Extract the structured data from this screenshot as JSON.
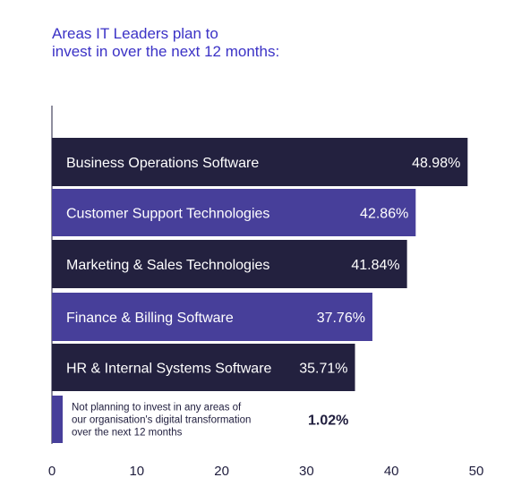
{
  "title": {
    "line1": "Areas IT Leaders plan to",
    "line2": "invest in over the next 12 months:"
  },
  "chart_data": {
    "type": "bar",
    "orientation": "horizontal",
    "categories": [
      "Business Operations Software",
      "Customer Support Technologies",
      "Marketing & Sales Technologies",
      "Finance & Billing Software",
      "HR & Internal Systems Software",
      "Not planning to invest in any areas of our organisation's digital transformation over the next 12 months"
    ],
    "label_lines": [
      [
        "Business Operations Software"
      ],
      [
        "Customer Support Technologies"
      ],
      [
        "Marketing & Sales Technologies"
      ],
      [
        "Finance & Billing Software"
      ],
      [
        "HR & Internal Systems Software"
      ],
      [
        "Not planning to invest in any areas of",
        "our organisation's digital transformation",
        "over the next 12 months"
      ]
    ],
    "values": [
      48.98,
      42.86,
      41.84,
      37.76,
      35.71,
      1.02
    ],
    "value_labels": [
      "48.98%",
      "42.86%",
      "41.84%",
      "37.76%",
      "35.71%",
      "1.02%"
    ],
    "colors": [
      "#23213f",
      "#473f9a",
      "#23213f",
      "#473f9a",
      "#23213f",
      "#473f9a"
    ],
    "xlim": [
      0,
      50
    ],
    "xticks": [
      0,
      10,
      20,
      30,
      40,
      50
    ],
    "xlabel": "",
    "ylabel": "",
    "grid": false,
    "legend": "none"
  }
}
